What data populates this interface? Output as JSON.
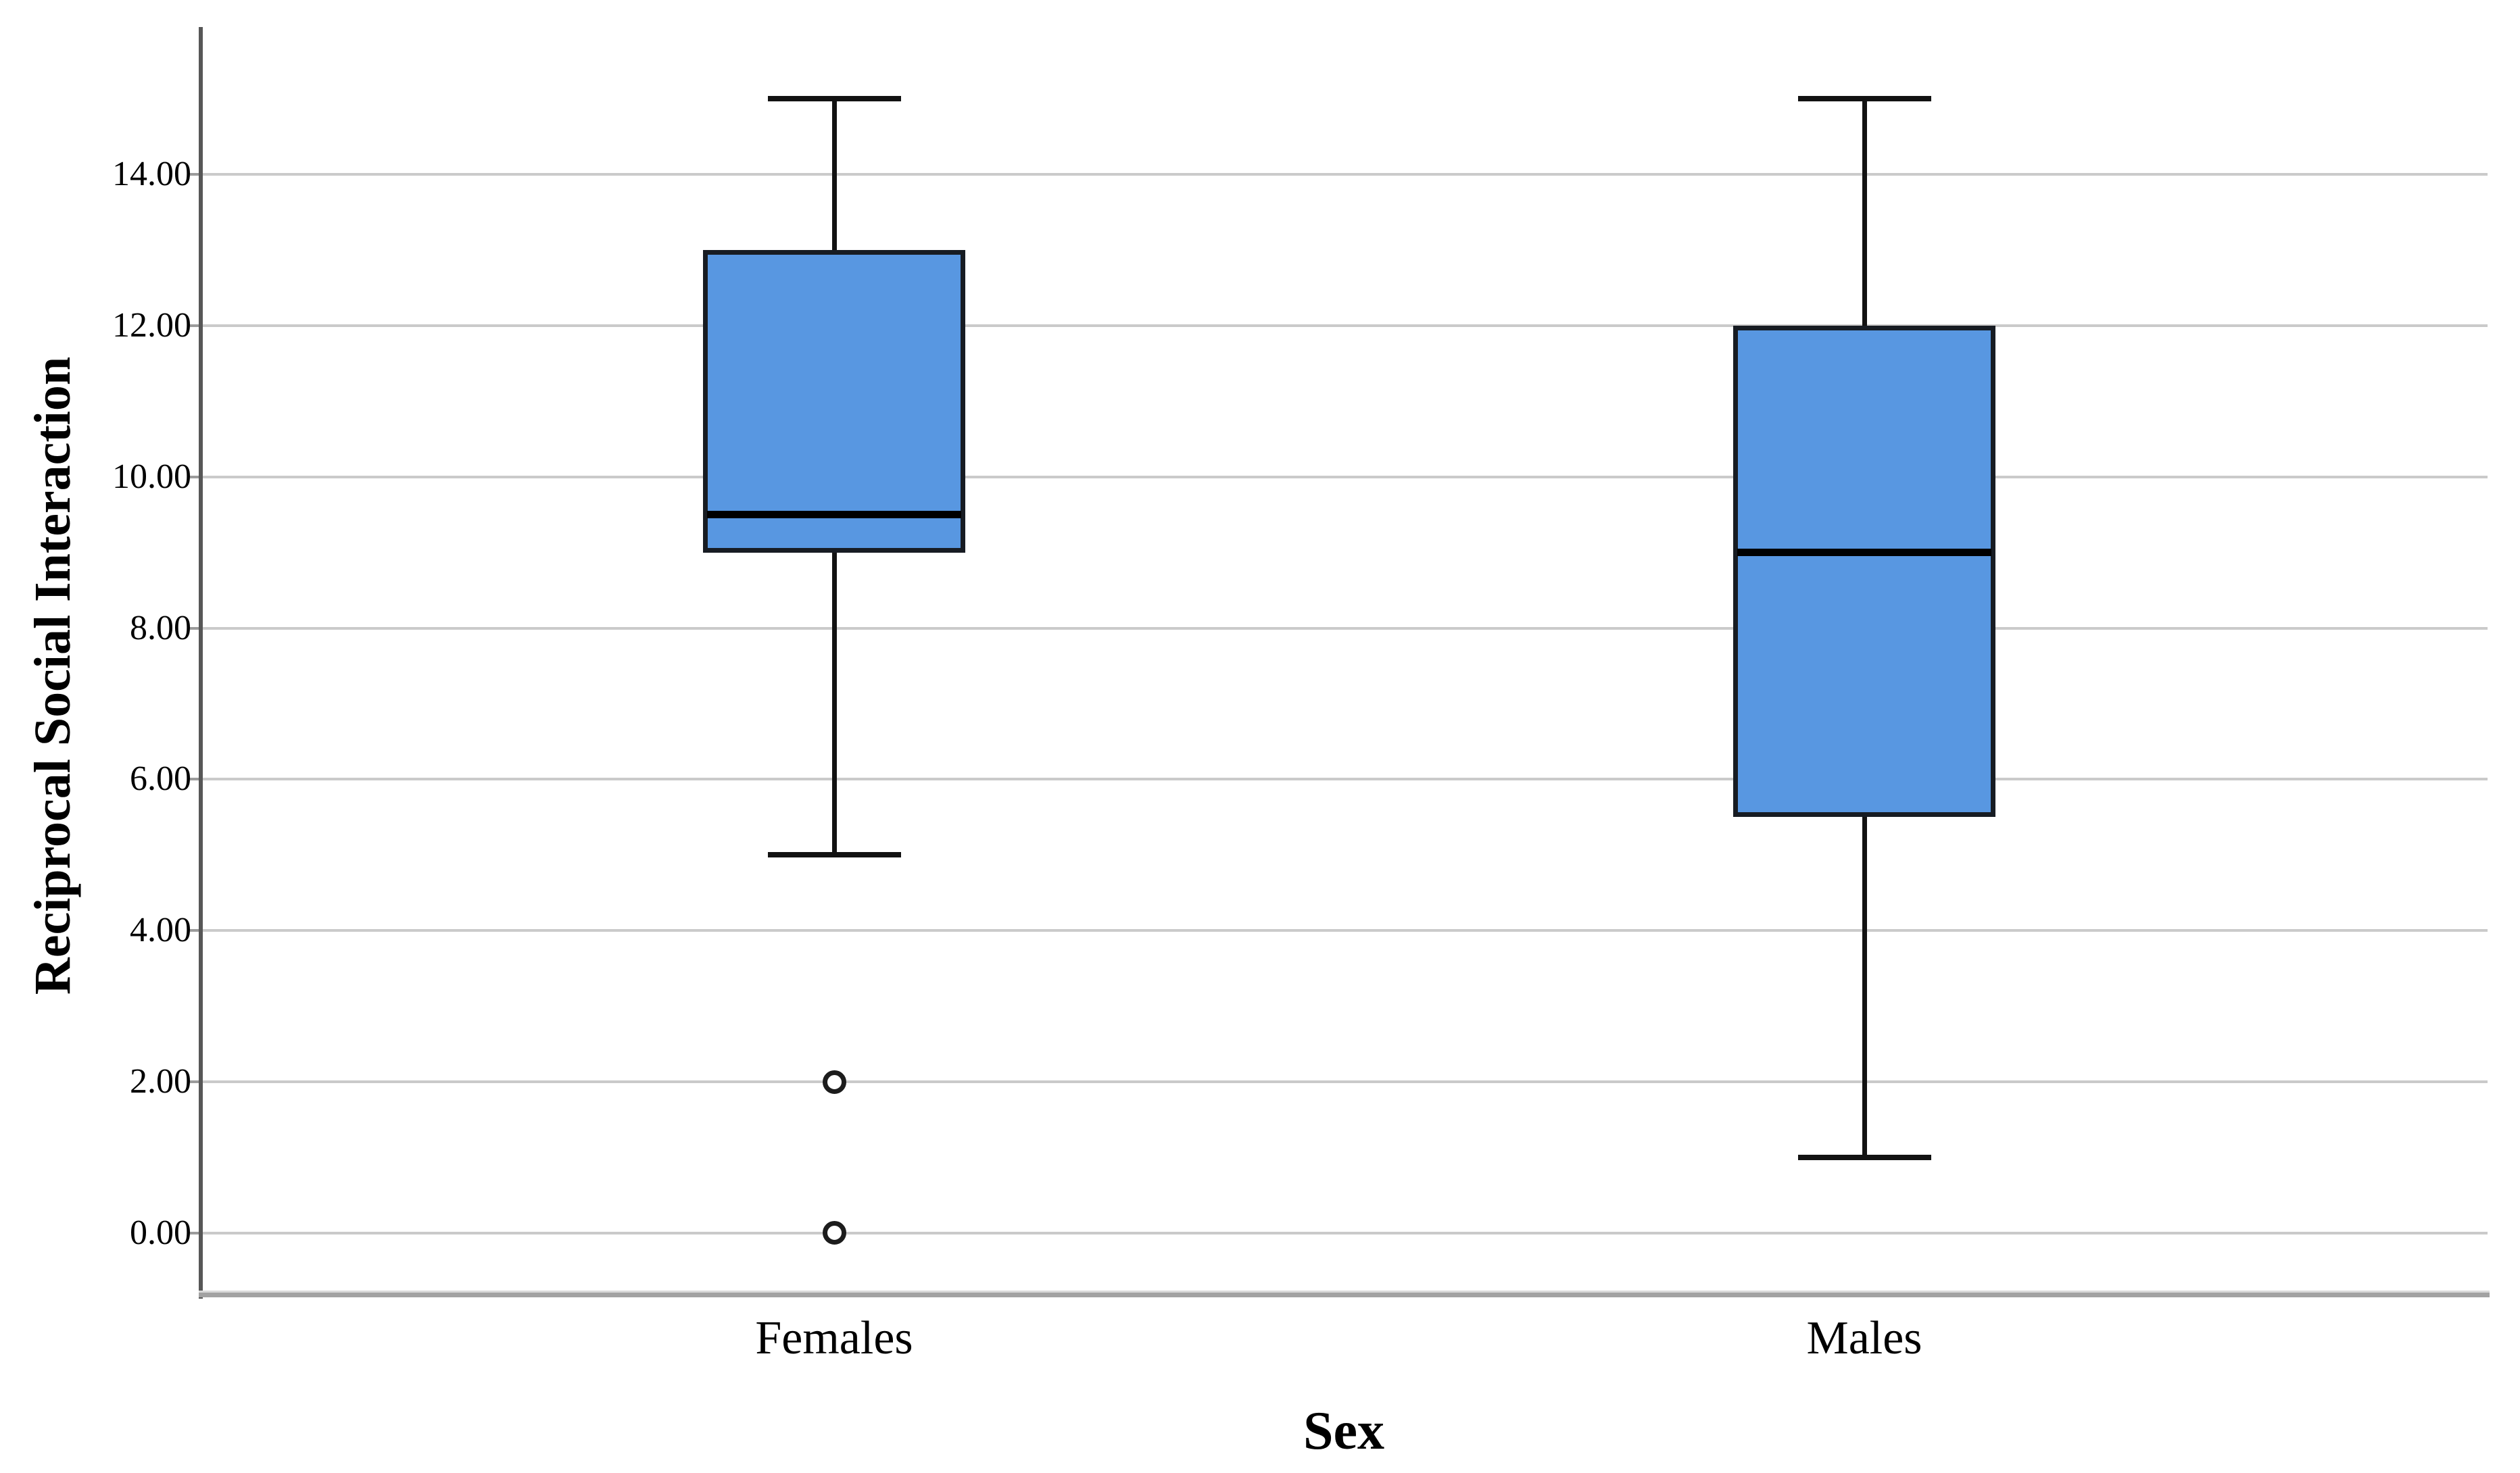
{
  "figure": {
    "background": "#ffffff"
  },
  "chart_data": {
    "type": "boxplot",
    "title": "",
    "xlabel": "Sex",
    "ylabel": "Reciprocal Social Interaction",
    "categories": [
      "Females",
      "Males"
    ],
    "series": [
      {
        "name": "Females",
        "whisker_low": 5.0,
        "q1": 9.0,
        "median": 9.5,
        "q3": 13.0,
        "whisker_high": 15.0,
        "outliers": [
          2.0,
          0.0
        ]
      },
      {
        "name": "Males",
        "whisker_low": 1.0,
        "q1": 5.5,
        "median": 9.0,
        "q3": 12.0,
        "whisker_high": 15.0,
        "outliers": []
      }
    ],
    "y_axis": {
      "min": -0.85,
      "max": 15.93,
      "ticks": [
        0,
        2,
        4,
        6,
        8,
        10,
        12,
        14
      ],
      "tick_labels": [
        "0.00",
        "2.00",
        "4.00",
        "6.00",
        "8.00",
        "10.00",
        "12.00",
        "14.00"
      ],
      "grid": true
    },
    "legend": "none",
    "colors": {
      "box_fill": "#5897E1",
      "box_border": "#171c23",
      "median": "#000000",
      "whisker": "#121212",
      "gridline": "#cacaca",
      "axis_line": "#575757",
      "frame_bottom_dark": "#a2a2a2",
      "frame_bottom_light": "#d9d9d9",
      "tick_mark": "#9b9b9b",
      "outlier_stroke": "#1c1c1c",
      "outlier_fill": "#ffffff"
    }
  }
}
